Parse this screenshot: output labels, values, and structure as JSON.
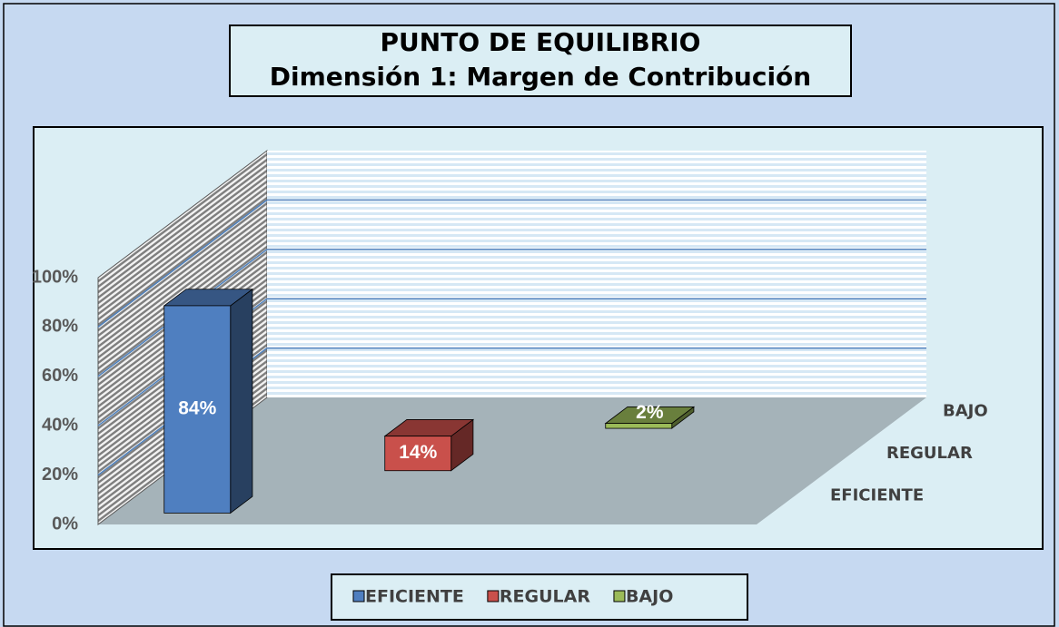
{
  "chart_data": {
    "type": "bar3d",
    "title": "PUNTO DE EQUILIBRIO",
    "subtitle": "Dimensión 1: Margen de Contribución",
    "series": [
      {
        "name": "EFICIENTE",
        "color": "#4f7fc0",
        "values": [
          84
        ],
        "value_labels": [
          "84%"
        ]
      },
      {
        "name": "REGULAR",
        "color": "#c9504b",
        "values": [
          14
        ],
        "value_labels": [
          "14%"
        ]
      },
      {
        "name": "BAJO",
        "color": "#9bbb59",
        "values": [
          2
        ],
        "value_labels": [
          "2%"
        ]
      }
    ],
    "ylim": [
      0,
      100
    ],
    "yticks": [
      {
        "value": 0,
        "label": "0%"
      },
      {
        "value": 20,
        "label": "20%"
      },
      {
        "value": 40,
        "label": "40%"
      },
      {
        "value": 60,
        "label": "60%"
      },
      {
        "value": 80,
        "label": "80%"
      },
      {
        "value": 100,
        "label": "100%"
      }
    ],
    "grid": true,
    "legend": "bottom"
  }
}
